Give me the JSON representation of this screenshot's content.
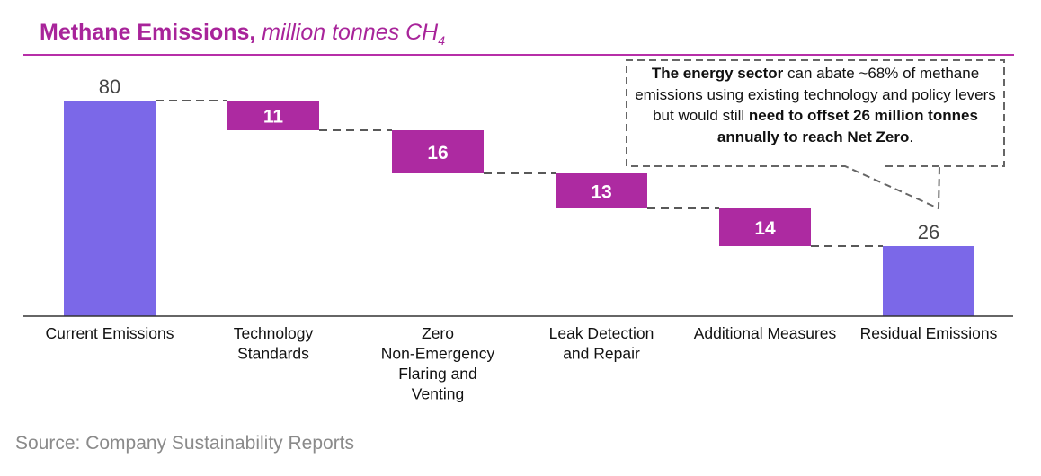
{
  "title": {
    "bold": "Methane Emissions,",
    "italic": " million tonnes CH",
    "subscript": "4"
  },
  "callout": {
    "p1": "The energy sector",
    "p2": " can abate ~68% of methane emissions using existing technology and policy levers but would still ",
    "p3": "need to offset 26 million tonnes annually to reach Net Zero",
    "p4": "."
  },
  "source": "Source: Company Sustainability Reports",
  "chart_data": {
    "type": "bar",
    "subtype": "waterfall",
    "categories": [
      [
        "Current Emissions"
      ],
      [
        "Technology",
        "Standards"
      ],
      [
        "Zero",
        "Non-Emergency",
        "Flaring and",
        "Venting"
      ],
      [
        "Leak Detection",
        "and Repair"
      ],
      [
        "Additional Measures"
      ],
      [
        "Residual Emissions"
      ]
    ],
    "values": [
      80,
      11,
      16,
      13,
      14,
      26
    ],
    "kinds": [
      "total",
      "decrease",
      "decrease",
      "decrease",
      "decrease",
      "total"
    ],
    "ylim": [
      0,
      80
    ],
    "grid": false,
    "colors": {
      "total": "#7b68e8",
      "decrease": "#ad2aa1",
      "label_on_decrease": "#ffffff",
      "label_on_total": "#444444"
    }
  }
}
